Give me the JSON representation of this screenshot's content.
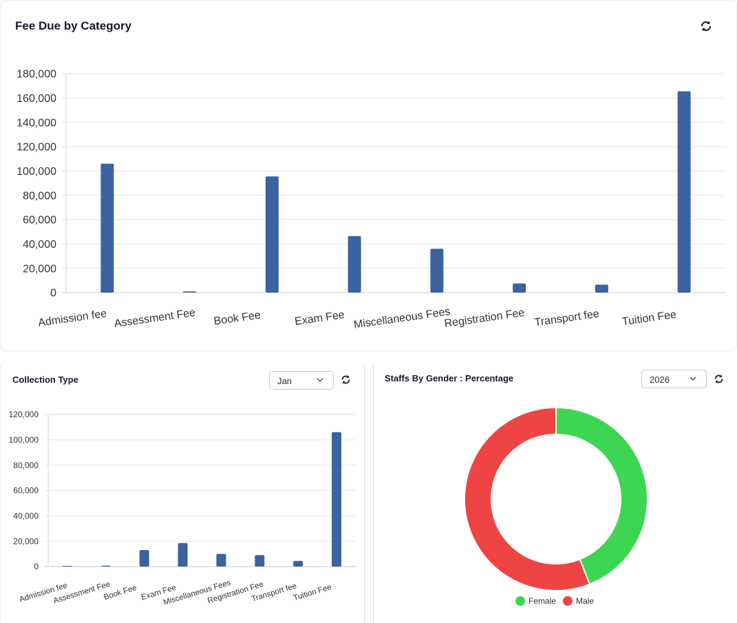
{
  "top_card": {
    "title": "Fee Due by Category"
  },
  "collection_card": {
    "title": "Collection Type",
    "month_select": {
      "value": "Jan"
    }
  },
  "gender_card": {
    "title": "Staffs By Gender : Percentage",
    "year_select": {
      "value": "2026"
    }
  },
  "icons": {
    "refresh": "refresh-icon",
    "dropdown": "chevron-down-icon"
  },
  "colors": {
    "bar": "#3a63a0",
    "female": "#3dd653",
    "male": "#ef4444",
    "grid": "#e6e6e6"
  },
  "chart_data": [
    {
      "type": "bar",
      "title": "Fee Due by Category",
      "categories": [
        "Admission fee",
        "Assessment Fee",
        "Book Fee",
        "Exam Fee",
        "Miscellaneous Fees",
        "Registration Fee",
        "Transport fee",
        "Tuition Fee"
      ],
      "values": [
        106000,
        1000,
        95500,
        46500,
        36000,
        7500,
        6500,
        165500
      ],
      "ylim": [
        0,
        180000
      ],
      "yticks": [
        0,
        20000,
        40000,
        60000,
        80000,
        100000,
        120000,
        140000,
        160000,
        180000
      ],
      "ytick_labels": [
        "0",
        "20,000",
        "40,000",
        "60,000",
        "80,000",
        "100,000",
        "120,000",
        "140,000",
        "160,000",
        "180,000"
      ],
      "grid": true
    },
    {
      "type": "bar",
      "title": "Collection Type",
      "categories": [
        "Admission fee",
        "Assessment Fee",
        "Book Fee",
        "Exam Fee",
        "Miscellaneous Fees",
        "Registration Fee",
        "Transport fee",
        "Tuition Fee"
      ],
      "values": [
        300,
        700,
        13000,
        18500,
        10000,
        9000,
        4500,
        106000
      ],
      "ylim": [
        0,
        120000
      ],
      "yticks": [
        0,
        20000,
        40000,
        60000,
        80000,
        100000,
        120000
      ],
      "ytick_labels": [
        "0",
        "20,000",
        "40,000",
        "60,000",
        "80,000",
        "100,000",
        "120,000"
      ],
      "grid": true
    },
    {
      "type": "pie",
      "title": "Staffs By Gender : Percentage",
      "labels": [
        "Female",
        "Male"
      ],
      "values": [
        44,
        56
      ],
      "colors": [
        "#3dd653",
        "#ef4444"
      ],
      "legend": "bottom"
    }
  ]
}
